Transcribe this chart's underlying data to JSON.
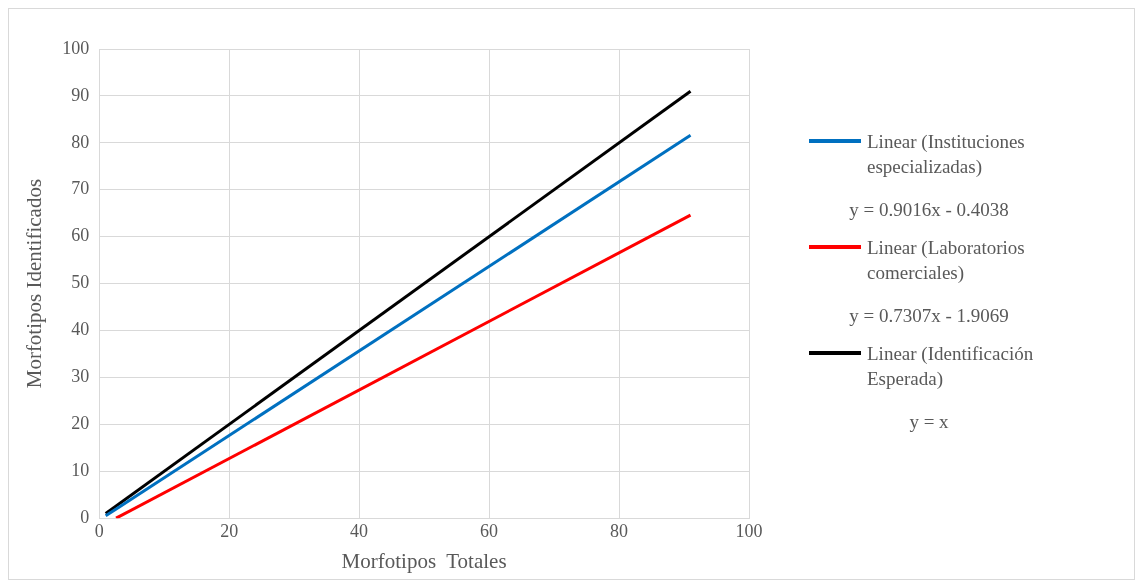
{
  "chart_data": {
    "type": "line",
    "xlabel": "Morfotipos  Totales",
    "ylabel": "Morfotipos Identificados",
    "xlim": [
      0,
      100
    ],
    "ylim": [
      0,
      100
    ],
    "xticks": [
      0,
      20,
      40,
      60,
      80,
      100
    ],
    "yticks": [
      0,
      10,
      20,
      30,
      40,
      50,
      60,
      70,
      80,
      90,
      100
    ],
    "grid": true,
    "legend": "right",
    "marker": "none",
    "line_style": "solid",
    "series": [
      {
        "name": "Linear (Instituciones especializadas)",
        "color": "#0070c0",
        "x": [
          1,
          91
        ],
        "values": [
          0.5,
          81.6
        ]
      },
      {
        "name": "Linear (Laboratorios comerciales)",
        "color": "#ff0000",
        "x": [
          2.6,
          91
        ],
        "values": [
          0,
          64.6
        ]
      },
      {
        "name": "Linear (Identificación Esperada)",
        "color": "#000000",
        "x": [
          1,
          91
        ],
        "values": [
          1,
          91
        ]
      }
    ],
    "annotations": [
      "y = 0.9016x - 0.4038",
      "y = 0.7307x - 1.9069",
      "y = x"
    ]
  }
}
